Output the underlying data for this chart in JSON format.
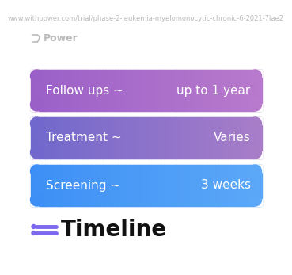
{
  "title": "Timeline",
  "background_color": "#ffffff",
  "rows": [
    {
      "left_label": "Screening ~",
      "right_label": "3 weeks",
      "color_left": "#3D8FF5",
      "color_right": "#5BA8F8"
    },
    {
      "left_label": "Treatment ~",
      "right_label": "Varies",
      "color_left": "#7068CC",
      "color_right": "#A87DC8"
    },
    {
      "left_label": "Follow ups ~",
      "right_label": "up to 1 year",
      "color_left": "#9B60C8",
      "color_right": "#B87ACC"
    }
  ],
  "footer_logo": "Power",
  "footer_url": "www.withpower.com/trial/phase-2-leukemia-myelomonocytic-chronic-6-2021-7lae2",
  "icon_color": "#7B68EE",
  "title_fontsize": 20,
  "row_fontsize": 11,
  "footer_fontsize": 6
}
